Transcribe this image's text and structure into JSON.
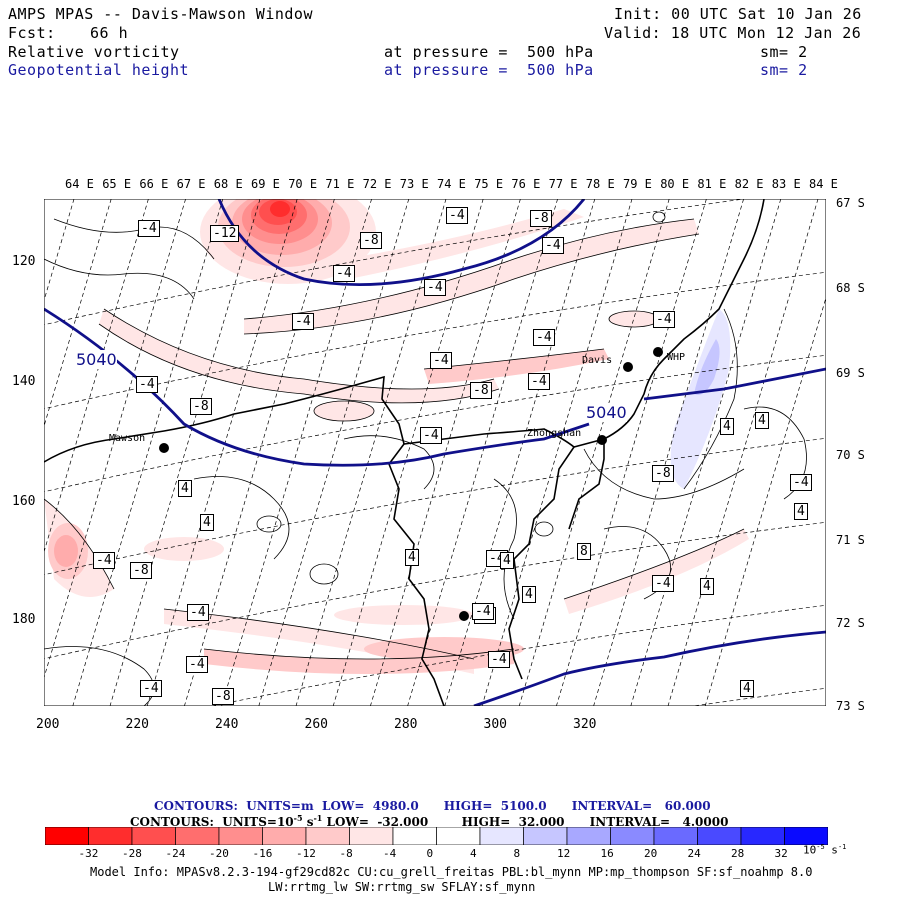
{
  "header": {
    "title": "AMPS MPAS -- Davis-Mawson Window",
    "init": "Init: 00 UTC Sat 10 Jan 26",
    "fcst_label": "Fcst:",
    "fcst_value": "66 h",
    "valid": "Valid: 18 UTC Mon 12 Jan 26",
    "field1": {
      "name": "Relative vorticity",
      "level": "at pressure =  500 hPa",
      "smooth": "sm= 2"
    },
    "field2": {
      "name": "Geopotential height",
      "level": "at pressure =  500 hPa",
      "smooth": "sm= 2"
    }
  },
  "axes": {
    "longitude_labels": [
      "64 E",
      "65 E",
      "66 E",
      "67 E",
      "68 E",
      "69 E",
      "70 E",
      "71 E",
      "72 E",
      "73 E",
      "74 E",
      "75 E",
      "76 E",
      "77 E",
      "78 E",
      "79 E",
      "80 E",
      "81 E",
      "82 E",
      "83 E",
      "84 E"
    ],
    "latitude_labels": [
      "67 S",
      "68 S",
      "69 S",
      "70 S",
      "71 S",
      "72 S",
      "73 S"
    ],
    "y_ticks": [
      "120",
      "140",
      "160",
      "180"
    ],
    "x_ticks": [
      "200",
      "220",
      "240",
      "260",
      "280",
      "300",
      "320"
    ]
  },
  "stations": [
    {
      "name": "Mawson"
    },
    {
      "name": "Davis"
    },
    {
      "name": "WHP"
    },
    {
      "name": "Zhongshan"
    }
  ],
  "height_labels": [
    "5040",
    "5040"
  ],
  "vorticity_labels": [
    "-4",
    "-8",
    "-12",
    "-8",
    "-4",
    "-4",
    "-4",
    "-4",
    "-4",
    "-4",
    "-8",
    "-4",
    "-4",
    "-8",
    "-4",
    "-4",
    "-4",
    "-4",
    "-8",
    "-4",
    "-4",
    "-8",
    "-4",
    "4",
    "4",
    "4",
    "4",
    "4",
    "8",
    "4",
    "4",
    "4",
    "4",
    "-4",
    "4",
    "-4",
    "-4",
    "-4",
    "-8",
    "-4",
    "-4"
  ],
  "contours": {
    "height": {
      "prefix": "CONTOURS:  UNITS=m",
      "low": "LOW=  4980.0",
      "high": "HIGH=  5100.0",
      "interval": "INTERVAL=   60.000"
    },
    "vorticity": {
      "prefix": "CONTOURS:  UNITS=10",
      "exp": "-5",
      "unit": " s",
      "unit_exp": "-1",
      "low": " LOW=  -32.000",
      "high": "HIGH=  32.000",
      "interval": "INTERVAL=   4.0000"
    }
  },
  "colorbar": {
    "labels": [
      "-32",
      "-28",
      "-24",
      "-20",
      "-16",
      "-12",
      "-8",
      "-4",
      "0",
      "4",
      "8",
      "12",
      "16",
      "20",
      "24",
      "28",
      "32"
    ],
    "units_base": "10",
    "units_exp": "-5",
    "units_tail": " s",
    "units_tail_exp": "-1",
    "colors": [
      "#ff0000",
      "#ff2d2d",
      "#ff4f4f",
      "#ff6e6e",
      "#ff8e8e",
      "#ffacac",
      "#ffcaca",
      "#ffe6e6",
      "#ffffff",
      "#ffffff",
      "#e6e6ff",
      "#c6c6ff",
      "#a8a8ff",
      "#8a8aff",
      "#6a6aff",
      "#4a4aff",
      "#2828ff",
      "#0a0aff"
    ]
  },
  "footer": {
    "line1": "Model Info: MPASv8.2.3-194-gf29cd82c CU:cu_grell_freitas PBL:bl_mynn MP:mp_thompson SF:sf_noahmp 8.0",
    "line2": "LW:rrtmg_lw SW:rrtmg_sw SFLAY:sf_mynn"
  },
  "colors": {
    "height_line": "#10108a",
    "coast": "#000000",
    "header_blue": "#1a1aa0"
  }
}
